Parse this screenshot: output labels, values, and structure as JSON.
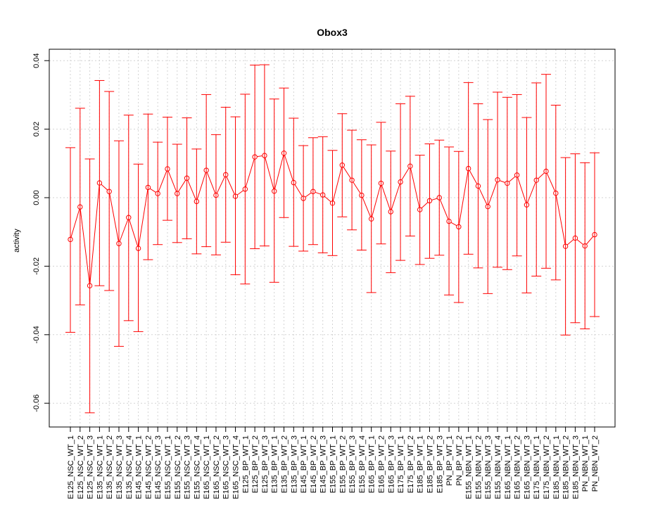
{
  "chart_data": {
    "type": "line",
    "title": "Obox3",
    "xlabel": "",
    "ylabel": "activity",
    "ylim": [
      -0.066,
      0.042
    ],
    "yticks": [
      0.04,
      0.02,
      0.0,
      -0.02,
      -0.04,
      -0.06
    ],
    "ytick_labels": [
      "0.04",
      "0.02",
      "0.00",
      "-0.02",
      "-0.04",
      "-0.06"
    ],
    "grid": true,
    "series_color": "#ff0000",
    "grid_color": "#d3d3d3",
    "categories": [
      "E125_NSC_WT_1",
      "E125_NSC_WT_2",
      "E125_NSC_WT_3",
      "E135_NSC_WT_1",
      "E135_NSC_WT_2",
      "E135_NSC_WT_3",
      "E135_NSC_WT_4",
      "E145_NSC_WT_1",
      "E145_NSC_WT_2",
      "E145_NSC_WT_3",
      "E155_NSC_WT_1",
      "E155_NSC_WT_2",
      "E155_NSC_WT_3",
      "E155_NSC_WT_4",
      "E165_NSC_WT_1",
      "E165_NSC_WT_2",
      "E165_NSC_WT_3",
      "E165_NSC_WT_4",
      "E125_BP_WT_1",
      "E125_BP_WT_2",
      "E125_BP_WT_3",
      "E135_BP_WT_1",
      "E135_BP_WT_2",
      "E135_BP_WT_3",
      "E145_BP_WT_1",
      "E145_BP_WT_2",
      "E145_BP_WT_3",
      "E155_BP_WT_1",
      "E155_BP_WT_2",
      "E155_BP_WT_3",
      "E155_BP_WT_4",
      "E165_BP_WT_1",
      "E165_BP_WT_2",
      "E165_BP_WT_3",
      "E175_BP_WT_1",
      "E175_BP_WT_2",
      "E185_BP_WT_1",
      "E185_BP_WT_2",
      "E185_BP_WT_3",
      "PN_BP_WT_1",
      "PN_BP_WT_2",
      "E155_NBN_WT_1",
      "E155_NBN_WT_2",
      "E155_NBN_WT_3",
      "E155_NBN_WT_4",
      "E165_NBN_WT_1",
      "E165_NBN_WT_2",
      "E165_NBN_WT_3",
      "E175_NBN_WT_1",
      "E175_NBN_WT_2",
      "E185_NBN_WT_1",
      "E185_NBN_WT_2",
      "E185_NBN_WT_3",
      "PN_NBN_WT_1",
      "PN_NBN_WT_2"
    ],
    "values": [
      -0.0122,
      -0.0027,
      -0.0257,
      0.0043,
      0.0018,
      -0.0134,
      -0.0058,
      -0.0148,
      0.003,
      0.0012,
      0.0084,
      0.0012,
      0.0057,
      -0.0011,
      0.008,
      0.0007,
      0.0067,
      0.0004,
      0.0025,
      0.0119,
      0.0123,
      0.0019,
      0.013,
      0.0044,
      -0.0002,
      0.0018,
      0.0008,
      -0.0016,
      0.0095,
      0.0051,
      0.0007,
      -0.0062,
      0.0042,
      -0.0041,
      0.0046,
      0.0092,
      -0.0035,
      -0.0009,
      0.0,
      -0.0069,
      -0.0085,
      0.0085,
      0.0034,
      -0.0026,
      0.0052,
      0.0042,
      0.0066,
      -0.0021,
      0.0051,
      0.0077,
      0.0013,
      -0.0142,
      -0.0118,
      -0.0141,
      -0.0108
    ],
    "upper": [
      0.0146,
      0.0261,
      0.0113,
      0.0342,
      0.031,
      0.0166,
      0.0241,
      0.0098,
      0.0244,
      0.0162,
      0.0235,
      0.0156,
      0.0233,
      0.0142,
      0.0301,
      0.0184,
      0.0264,
      0.0236,
      0.0302,
      0.0387,
      0.0388,
      0.0288,
      0.032,
      0.0232,
      0.0152,
      0.0175,
      0.0178,
      0.0138,
      0.0245,
      0.0197,
      0.0169,
      0.0154,
      0.022,
      0.0136,
      0.0274,
      0.0296,
      0.0124,
      0.0157,
      0.0168,
      0.0148,
      0.0135,
      0.0336,
      0.0274,
      0.0228,
      0.0308,
      0.0293,
      0.0301,
      0.0234,
      0.0335,
      0.036,
      0.027,
      0.0117,
      0.0128,
      0.0102,
      0.0131
    ],
    "lower": [
      -0.0393,
      -0.0313,
      -0.0628,
      -0.0257,
      -0.0271,
      -0.0434,
      -0.0359,
      -0.0391,
      -0.0181,
      -0.0137,
      -0.0066,
      -0.0131,
      -0.012,
      -0.0164,
      -0.0143,
      -0.0167,
      -0.013,
      -0.0225,
      -0.0252,
      -0.0149,
      -0.0141,
      -0.0247,
      -0.0058,
      -0.0142,
      -0.0156,
      -0.0137,
      -0.0161,
      -0.0169,
      -0.0056,
      -0.0094,
      -0.0153,
      -0.0277,
      -0.0135,
      -0.0219,
      -0.0183,
      -0.0112,
      -0.0195,
      -0.0177,
      -0.0168,
      -0.0284,
      -0.0306,
      -0.0165,
      -0.0205,
      -0.028,
      -0.0203,
      -0.021,
      -0.017,
      -0.0278,
      -0.0229,
      -0.0206,
      -0.024,
      -0.0401,
      -0.0365,
      -0.0383,
      -0.0347
    ]
  }
}
